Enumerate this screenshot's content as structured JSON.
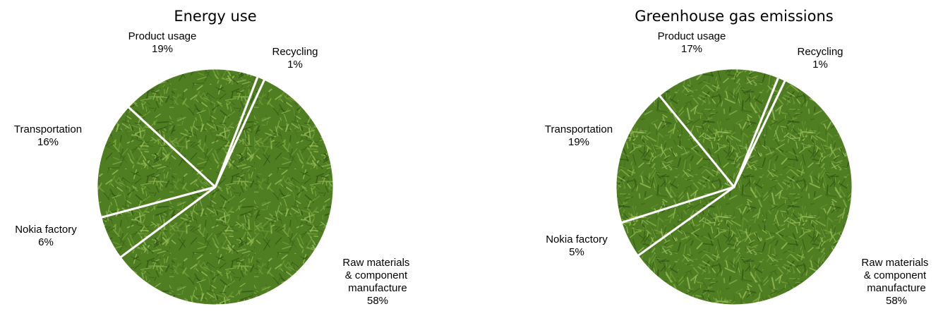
{
  "chart_data": [
    {
      "type": "pie",
      "title": "Energy use",
      "categories": [
        "Recycling",
        "Raw materials & component manufacture",
        "Nokia factory",
        "Transportation",
        "Product usage"
      ],
      "values": [
        1,
        58,
        6,
        16,
        19
      ],
      "value_labels": [
        "1%",
        "58%",
        "6%",
        "16%",
        "19%"
      ],
      "color": "#4f7d22"
    },
    {
      "type": "pie",
      "title": "Greenhouse gas emissions",
      "categories": [
        "Recycling",
        "Raw materials & component manufacture",
        "Nokia factory",
        "Transportation",
        "Product usage"
      ],
      "values": [
        1,
        58,
        5,
        19,
        17
      ],
      "value_labels": [
        "1%",
        "58%",
        "5%",
        "19%",
        "17%"
      ],
      "color": "#4f7d22"
    }
  ]
}
